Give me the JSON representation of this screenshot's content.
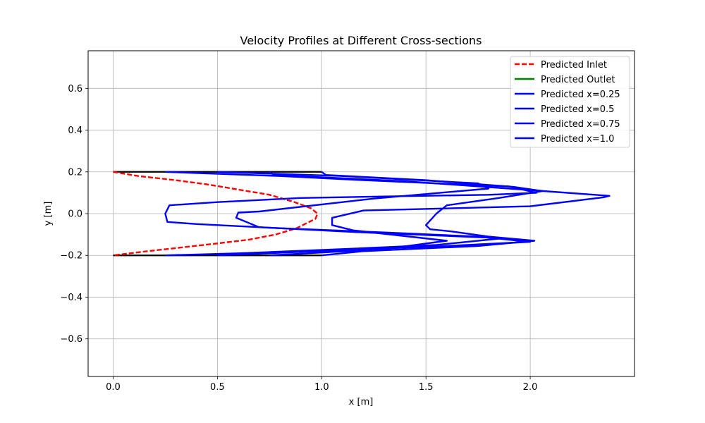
{
  "chart_data": {
    "type": "line",
    "title": "Velocity Profiles at Different Cross-sections",
    "xlabel": "x [m]",
    "ylabel": "y [m]",
    "xlim": [
      -0.12,
      2.5
    ],
    "ylim": [
      -0.78,
      0.78
    ],
    "xticks": [
      0.0,
      0.5,
      1.0,
      1.5,
      2.0
    ],
    "xtick_labels": [
      "0.0",
      "0.5",
      "1.0",
      "1.5",
      "2.0"
    ],
    "yticks": [
      -0.6,
      -0.4,
      -0.2,
      0.0,
      0.2,
      0.4,
      0.6
    ],
    "ytick_labels": [
      "−0.6",
      "−0.4",
      "−0.2",
      "0.0",
      "0.2",
      "0.4",
      "0.6"
    ],
    "grid": true,
    "legend_position": "top-right",
    "walls": [
      {
        "color": "#000000",
        "x": [
          0.0,
          1.0
        ],
        "y": [
          0.2,
          0.2
        ]
      },
      {
        "color": "#000000",
        "x": [
          0.0,
          1.0
        ],
        "y": [
          -0.2,
          -0.2
        ]
      }
    ],
    "series": [
      {
        "name": "Predicted Inlet",
        "color": "#ff0000",
        "style": "dashed",
        "x": [
          0.0,
          0.12,
          0.3,
          0.45,
          0.6,
          0.75,
          0.87,
          0.95,
          0.98,
          0.97,
          0.94,
          0.88,
          0.78,
          0.65,
          0.48,
          0.3,
          0.12,
          0.0
        ],
        "y": [
          0.2,
          0.18,
          0.16,
          0.14,
          0.115,
          0.09,
          0.055,
          0.025,
          0.0,
          -0.025,
          -0.04,
          -0.07,
          -0.1,
          -0.125,
          -0.145,
          -0.165,
          -0.185,
          -0.2
        ]
      },
      {
        "name": "Predicted Outlet",
        "color": "#008000",
        "style": "solid",
        "x": [],
        "y": []
      },
      {
        "name": "Predicted x=0.25",
        "color": "#0000ff",
        "style": "solid",
        "x": [
          0.25,
          0.8,
          1.2,
          1.9,
          2.03,
          1.8,
          1.3,
          0.9,
          0.5,
          0.27,
          0.25,
          0.26,
          0.4,
          0.8,
          1.3,
          1.75,
          1.85,
          1.55,
          1.1,
          0.6,
          0.25
        ],
        "y": [
          0.2,
          0.18,
          0.16,
          0.13,
          0.1,
          0.09,
          0.082,
          0.075,
          0.055,
          0.04,
          0.0,
          -0.04,
          -0.05,
          -0.07,
          -0.09,
          -0.11,
          -0.12,
          -0.15,
          -0.17,
          -0.19,
          -0.2
        ]
      },
      {
        "name": "Predicted x=0.5",
        "color": "#0000ff",
        "style": "solid",
        "x": [
          0.5,
          1.1,
          1.75,
          1.8,
          1.25,
          0.7,
          0.6,
          0.59,
          0.7,
          1.2,
          1.8,
          2.0,
          1.6,
          1.1,
          0.5
        ],
        "y": [
          0.2,
          0.18,
          0.145,
          0.12,
          0.072,
          0.01,
          0.005,
          -0.02,
          -0.065,
          -0.09,
          -0.115,
          -0.135,
          -0.155,
          -0.175,
          -0.2
        ]
      },
      {
        "name": "Predicted x=0.75",
        "color": "#0000ff",
        "style": "solid",
        "x": [
          0.75,
          0.77,
          1.4,
          1.9,
          2.38,
          2.35,
          2.0,
          1.2,
          1.05,
          1.05,
          1.15,
          1.6,
          1.3,
          0.75
        ],
        "y": [
          0.2,
          0.185,
          0.155,
          0.12,
          0.085,
          0.078,
          0.035,
          0.015,
          -0.02,
          -0.055,
          -0.08,
          -0.13,
          -0.17,
          -0.2
        ]
      },
      {
        "name": "Predicted x=1.0",
        "color": "#0000ff",
        "style": "solid",
        "x": [
          1.0,
          1.02,
          1.5,
          1.92,
          2.06,
          1.85,
          1.6,
          1.55,
          1.5,
          1.52,
          1.62,
          1.8,
          2.02,
          1.75,
          1.2,
          1.0
        ],
        "y": [
          0.2,
          0.185,
          0.16,
          0.128,
          0.108,
          0.075,
          0.04,
          0.0,
          -0.055,
          -0.075,
          -0.085,
          -0.11,
          -0.13,
          -0.155,
          -0.18,
          -0.2
        ]
      }
    ]
  }
}
